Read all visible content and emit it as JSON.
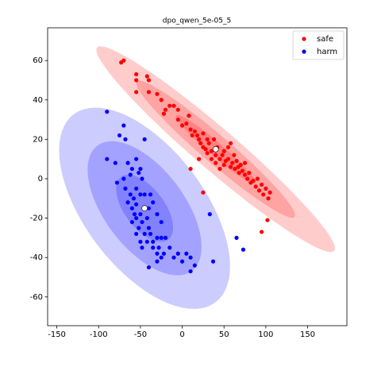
{
  "chart_data": {
    "type": "scatter",
    "title": "dpo_qwen_5e-05_5",
    "xlim": [
      -161,
      197
    ],
    "ylim": [
      -74.6,
      76.6
    ],
    "xticks": [
      -150,
      -100,
      -50,
      0,
      50,
      100,
      150
    ],
    "yticks": [
      -60,
      -40,
      -20,
      0,
      20,
      40,
      60
    ],
    "grid": false,
    "legend": "upper right",
    "n_std": [
      1,
      2,
      3
    ],
    "series": [
      {
        "name": "safe",
        "color": "#ff0000",
        "ellipse": {
          "center": [
            40,
            15
          ],
          "major": [
            47.3,
            -17.2
          ],
          "minor": [
            5.3,
            2.7
          ]
        },
        "x": [
          -73,
          -70,
          -55,
          -55,
          -42,
          -40,
          -55,
          -40,
          -30,
          -25,
          -20,
          -15,
          -10,
          -5,
          -22,
          -5,
          0,
          5,
          8,
          10,
          12,
          15,
          18,
          20,
          22,
          25,
          25,
          28,
          30,
          30,
          32,
          35,
          35,
          38,
          40,
          40,
          42,
          45,
          45,
          48,
          50,
          50,
          52,
          55,
          58,
          60,
          62,
          63,
          65,
          67,
          68,
          70,
          72,
          75,
          75,
          78,
          80,
          82,
          85,
          88,
          90,
          92,
          95,
          97,
          100,
          103,
          105,
          58,
          55,
          25,
          95,
          102,
          10,
          20
        ],
        "values": [
          59,
          60,
          53,
          50,
          52,
          50,
          44,
          44,
          43,
          40,
          35,
          37,
          37,
          35,
          33,
          30,
          27,
          28,
          32,
          25,
          22,
          24,
          22,
          20,
          18,
          23,
          16,
          15,
          20,
          13,
          18,
          14,
          10,
          20,
          12,
          8,
          16,
          10,
          5,
          12,
          14,
          7,
          9,
          10,
          6,
          8,
          12,
          5,
          9,
          6,
          3,
          7,
          4,
          2,
          8,
          0,
          3,
          -2,
          -1,
          -4,
          0,
          -6,
          -3,
          -8,
          -5,
          -10,
          -7,
          18,
          16,
          -7,
          -27,
          -21,
          5,
          10
        ]
      },
      {
        "name": "harm",
        "color": "#0000ff",
        "ellipse": {
          "center": [
            -45,
            -15
          ],
          "major": [
            28.3,
            -15.9
          ],
          "minor": [
            19,
            6.1
          ]
        },
        "x": [
          -90,
          -70,
          -75,
          -68,
          -45,
          -90,
          -80,
          -65,
          -60,
          -52,
          -62,
          -70,
          -78,
          -55,
          -68,
          -62,
          -58,
          -55,
          -65,
          -60,
          -50,
          -55,
          -48,
          -42,
          -40,
          -52,
          -45,
          -55,
          -38,
          -30,
          -35,
          -42,
          -50,
          -48,
          -25,
          -28,
          -20,
          -22,
          -25,
          -30,
          -35,
          -40,
          -35,
          -30,
          -25,
          -45,
          -48,
          -38,
          -57,
          -60,
          -50,
          -15,
          -10,
          -5,
          0,
          5,
          10,
          15,
          10,
          -55,
          -50,
          33,
          37,
          65,
          73,
          -40,
          -30
        ],
        "values": [
          34,
          27,
          22,
          20,
          20,
          10,
          8,
          8,
          5,
          3,
          2,
          0,
          -2,
          -5,
          -5,
          -8,
          -10,
          -13,
          -12,
          -15,
          -18,
          -20,
          -22,
          -20,
          -25,
          -25,
          -28,
          -28,
          -28,
          -30,
          -32,
          -32,
          -32,
          -35,
          -30,
          -35,
          -30,
          -38,
          -40,
          -38,
          -35,
          -15,
          -12,
          -18,
          -22,
          -8,
          0,
          -8,
          -18,
          -22,
          -8,
          -35,
          -40,
          -38,
          -42,
          -38,
          -40,
          -44,
          -47,
          10,
          5,
          -18,
          -42,
          -30,
          -36,
          -45,
          -42
        ]
      }
    ]
  }
}
